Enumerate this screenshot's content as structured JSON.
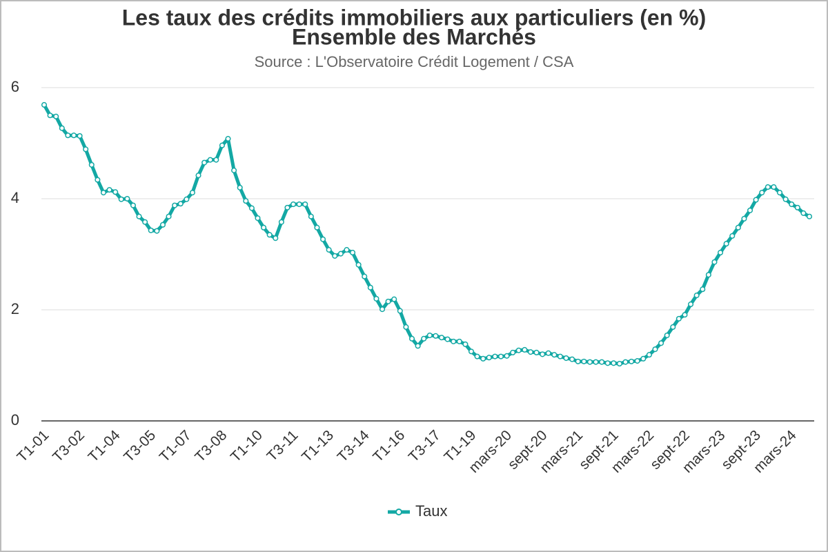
{
  "chart_data": {
    "type": "line",
    "title": "Les taux des crédits immobiliers aux particuliers (en %)",
    "subtitle": "Ensemble des Marchés",
    "source": "Source : L'Observatoire Crédit Logement / CSA",
    "categories": [
      "T1-01",
      null,
      null,
      null,
      null,
      null,
      "T3-02",
      null,
      null,
      null,
      null,
      null,
      "T1-04",
      null,
      null,
      null,
      null,
      null,
      "T3-05",
      null,
      null,
      null,
      null,
      null,
      "T1-07",
      null,
      null,
      null,
      null,
      null,
      "T3-08",
      null,
      null,
      null,
      null,
      null,
      "T1-10",
      null,
      null,
      null,
      null,
      null,
      "T3-11",
      null,
      null,
      null,
      null,
      null,
      "T1-13",
      null,
      null,
      null,
      null,
      null,
      "T3-14",
      null,
      null,
      null,
      null,
      null,
      "T1-16",
      null,
      null,
      null,
      null,
      null,
      "T3-17",
      null,
      null,
      null,
      null,
      null,
      "T1-19",
      null,
      null,
      null,
      null,
      null,
      "mars-20",
      null,
      null,
      null,
      null,
      null,
      "sept-20",
      null,
      null,
      null,
      null,
      null,
      "mars-21",
      null,
      null,
      null,
      null,
      null,
      "sept-21",
      null,
      null,
      null,
      null,
      null,
      "mars-22",
      null,
      null,
      null,
      null,
      null,
      "sept-22",
      null,
      null,
      null,
      null,
      null,
      "mars-23",
      null,
      null,
      null,
      null,
      null,
      "sept-23",
      null,
      null,
      null,
      null,
      null,
      "mars-24",
      null,
      null,
      null
    ],
    "series": [
      {
        "name": "Taux",
        "color": "#13a8a4",
        "values": [
          5.69,
          5.5,
          5.48,
          5.27,
          5.14,
          5.14,
          5.13,
          4.89,
          4.61,
          4.34,
          4.11,
          4.16,
          4.12,
          3.99,
          4.0,
          3.88,
          3.68,
          3.58,
          3.43,
          3.42,
          3.53,
          3.68,
          3.88,
          3.91,
          3.99,
          4.11,
          4.42,
          4.65,
          4.7,
          4.7,
          4.96,
          5.08,
          4.51,
          4.2,
          3.96,
          3.83,
          3.65,
          3.48,
          3.35,
          3.29,
          3.58,
          3.84,
          3.9,
          3.9,
          3.9,
          3.68,
          3.48,
          3.27,
          3.08,
          2.97,
          3.01,
          3.08,
          3.03,
          2.81,
          2.6,
          2.4,
          2.2,
          2.01,
          2.15,
          2.19,
          1.98,
          1.69,
          1.48,
          1.35,
          1.48,
          1.54,
          1.53,
          1.5,
          1.47,
          1.43,
          1.43,
          1.38,
          1.25,
          1.16,
          1.12,
          1.14,
          1.16,
          1.16,
          1.17,
          1.23,
          1.27,
          1.28,
          1.24,
          1.23,
          1.2,
          1.22,
          1.19,
          1.16,
          1.13,
          1.11,
          1.07,
          1.07,
          1.06,
          1.06,
          1.06,
          1.04,
          1.04,
          1.03,
          1.06,
          1.07,
          1.08,
          1.12,
          1.19,
          1.29,
          1.4,
          1.54,
          1.69,
          1.84,
          1.91,
          2.1,
          2.26,
          2.37,
          2.63,
          2.86,
          3.03,
          3.19,
          3.33,
          3.48,
          3.64,
          3.79,
          3.98,
          4.11,
          4.21,
          4.21,
          4.11,
          3.99,
          3.9,
          3.84,
          3.74,
          3.68
        ]
      }
    ],
    "ylim": [
      0,
      6
    ],
    "yticks": [
      0,
      2,
      4,
      6
    ],
    "grid": true
  }
}
